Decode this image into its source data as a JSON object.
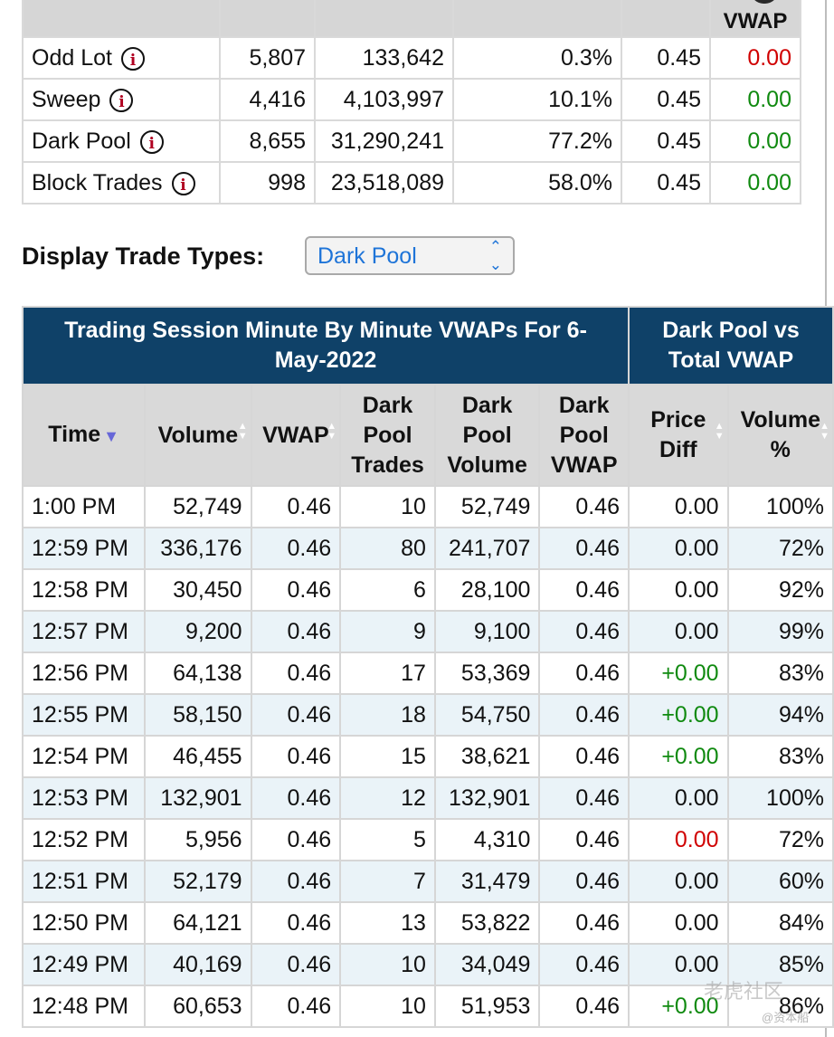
{
  "summary": {
    "header_last": "VWAP",
    "rows": [
      {
        "name": "Odd Lot",
        "trades": "5,807",
        "volume": "133,642",
        "pct": "0.3%",
        "vwap": "0.45",
        "diff": "0.00",
        "diff_color": "red"
      },
      {
        "name": "Sweep",
        "trades": "4,416",
        "volume": "4,103,997",
        "pct": "10.1%",
        "vwap": "0.45",
        "diff": "0.00",
        "diff_color": "green"
      },
      {
        "name": "Dark Pool",
        "trades": "8,655",
        "volume": "31,290,241",
        "pct": "77.2%",
        "vwap": "0.45",
        "diff": "0.00",
        "diff_color": "green"
      },
      {
        "name": "Block Trades",
        "trades": "998",
        "volume": "23,518,089",
        "pct": "58.0%",
        "vwap": "0.45",
        "diff": "0.00",
        "diff_color": "green"
      }
    ],
    "info_icon_glyph": "i"
  },
  "display_trade_types": {
    "label": "Display Trade Types:",
    "selected": "Dark Pool"
  },
  "session_table": {
    "title": "Trading Session Minute By Minute VWAPs For 6-May-2022",
    "group_title": "Dark Pool vs Total VWAP",
    "columns": {
      "time": "Time",
      "volume": "Volume",
      "vwap": "VWAP",
      "dp_trades": "Dark Pool Trades",
      "dp_volume": "Dark Pool Volume",
      "dp_vwap": "Dark Pool VWAP",
      "price_diff": "Price Diff",
      "volume_pct": "Volume %"
    },
    "rows": [
      {
        "time": "1:00 PM",
        "volume": "52,749",
        "vwap": "0.46",
        "dp_trades": "10",
        "dp_volume": "52,749",
        "dp_vwap": "0.46",
        "price_diff": "0.00",
        "diff_color": "black",
        "volume_pct": "100%"
      },
      {
        "time": "12:59 PM",
        "volume": "336,176",
        "vwap": "0.46",
        "dp_trades": "80",
        "dp_volume": "241,707",
        "dp_vwap": "0.46",
        "price_diff": "0.00",
        "diff_color": "black",
        "volume_pct": "72%"
      },
      {
        "time": "12:58 PM",
        "volume": "30,450",
        "vwap": "0.46",
        "dp_trades": "6",
        "dp_volume": "28,100",
        "dp_vwap": "0.46",
        "price_diff": "0.00",
        "diff_color": "black",
        "volume_pct": "92%"
      },
      {
        "time": "12:57 PM",
        "volume": "9,200",
        "vwap": "0.46",
        "dp_trades": "9",
        "dp_volume": "9,100",
        "dp_vwap": "0.46",
        "price_diff": "0.00",
        "diff_color": "black",
        "volume_pct": "99%"
      },
      {
        "time": "12:56 PM",
        "volume": "64,138",
        "vwap": "0.46",
        "dp_trades": "17",
        "dp_volume": "53,369",
        "dp_vwap": "0.46",
        "price_diff": "+0.00",
        "diff_color": "green",
        "volume_pct": "83%"
      },
      {
        "time": "12:55 PM",
        "volume": "58,150",
        "vwap": "0.46",
        "dp_trades": "18",
        "dp_volume": "54,750",
        "dp_vwap": "0.46",
        "price_diff": "+0.00",
        "diff_color": "green",
        "volume_pct": "94%"
      },
      {
        "time": "12:54 PM",
        "volume": "46,455",
        "vwap": "0.46",
        "dp_trades": "15",
        "dp_volume": "38,621",
        "dp_vwap": "0.46",
        "price_diff": "+0.00",
        "diff_color": "green",
        "volume_pct": "83%"
      },
      {
        "time": "12:53 PM",
        "volume": "132,901",
        "vwap": "0.46",
        "dp_trades": "12",
        "dp_volume": "132,901",
        "dp_vwap": "0.46",
        "price_diff": "0.00",
        "diff_color": "black",
        "volume_pct": "100%"
      },
      {
        "time": "12:52 PM",
        "volume": "5,956",
        "vwap": "0.46",
        "dp_trades": "5",
        "dp_volume": "4,310",
        "dp_vwap": "0.46",
        "price_diff": "0.00",
        "diff_color": "red",
        "volume_pct": "72%"
      },
      {
        "time": "12:51 PM",
        "volume": "52,179",
        "vwap": "0.46",
        "dp_trades": "7",
        "dp_volume": "31,479",
        "dp_vwap": "0.46",
        "price_diff": "0.00",
        "diff_color": "black",
        "volume_pct": "60%"
      },
      {
        "time": "12:50 PM",
        "volume": "64,121",
        "vwap": "0.46",
        "dp_trades": "13",
        "dp_volume": "53,822",
        "dp_vwap": "0.46",
        "price_diff": "0.00",
        "diff_color": "black",
        "volume_pct": "84%"
      },
      {
        "time": "12:49 PM",
        "volume": "40,169",
        "vwap": "0.46",
        "dp_trades": "10",
        "dp_volume": "34,049",
        "dp_vwap": "0.46",
        "price_diff": "0.00",
        "diff_color": "black",
        "volume_pct": "85%"
      },
      {
        "time": "12:48 PM",
        "volume": "60,653",
        "vwap": "0.46",
        "dp_trades": "10",
        "dp_volume": "51,953",
        "dp_vwap": "0.46",
        "price_diff": "+0.00",
        "diff_color": "green",
        "volume_pct": "86%"
      }
    ]
  },
  "watermark": {
    "main": "老虎社区",
    "sub": "@资本船"
  },
  "colors": {
    "header_bg": "#0f4168",
    "row_alt_bg": "#eaf3f8",
    "positive": "#108a10",
    "negative": "#d00000",
    "select_text": "#1e74d8"
  }
}
